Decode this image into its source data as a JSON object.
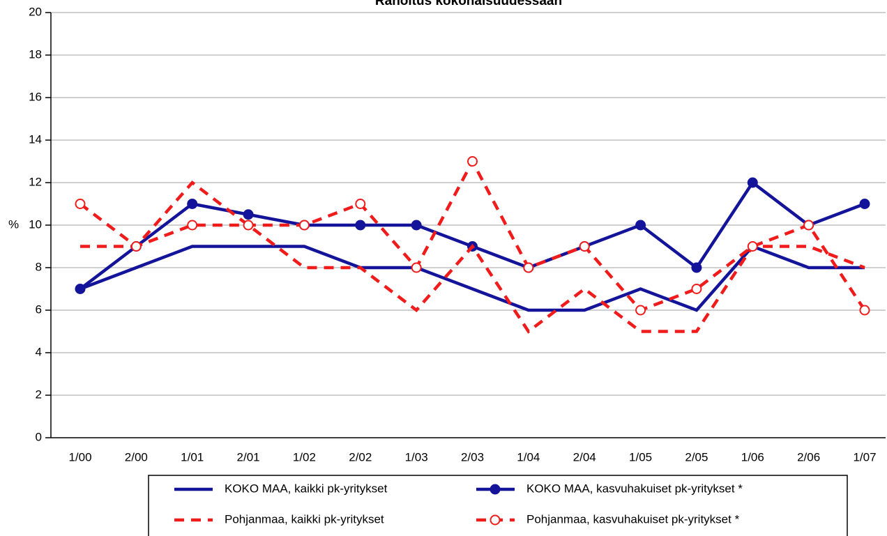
{
  "chart_data": {
    "type": "line",
    "title": "Rahoitus kokonaisuudessaan",
    "y_label": "%",
    "categories": [
      "1/00",
      "2/00",
      "1/01",
      "2/01",
      "1/02",
      "2/02",
      "1/03",
      "2/03",
      "1/04",
      "2/04",
      "1/05",
      "2/05",
      "1/06",
      "2/06",
      "1/07"
    ],
    "series": [
      {
        "name": "KOKO MAA, kaikki pk-yritykset",
        "color": "#14149a",
        "dashed": false,
        "marker": "none",
        "values": [
          7,
          8,
          9,
          9,
          9,
          8,
          8,
          7,
          6,
          6,
          7,
          6,
          9,
          8,
          8
        ]
      },
      {
        "name": "KOKO MAA, kasvuhakuiset pk-yritykset *",
        "color": "#14149a",
        "dashed": false,
        "marker": "filled",
        "values": [
          7,
          9,
          11,
          10.5,
          10,
          10,
          10,
          9,
          8,
          9,
          10,
          8,
          12,
          10,
          11
        ]
      },
      {
        "name": "Pohjanmaa, kaikki pk-yritykset",
        "color": "#f01c1c",
        "dashed": true,
        "marker": "none",
        "values": [
          9,
          9,
          12,
          10,
          8,
          8,
          6,
          9,
          5,
          7,
          5,
          5,
          9,
          9,
          8
        ]
      },
      {
        "name": "Pohjanmaa, kasvuhakuiset pk-yritykset *",
        "color": "#f01c1c",
        "dashed": true,
        "marker": "open",
        "values": [
          11,
          9,
          10,
          10,
          10,
          11,
          8,
          13,
          8,
          9,
          6,
          7,
          9,
          10,
          6
        ]
      }
    ],
    "ylim": [
      0,
      20
    ],
    "yticks": [
      0,
      2,
      4,
      6,
      8,
      10,
      12,
      14,
      16,
      18,
      20
    ],
    "grid": true
  }
}
